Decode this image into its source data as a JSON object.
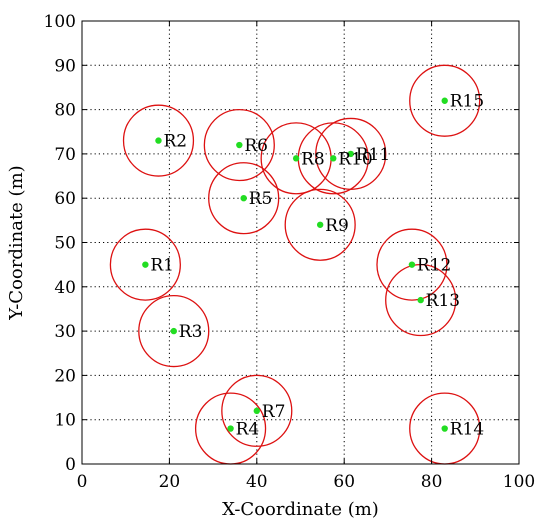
{
  "chart_data": {
    "type": "scatter",
    "title": "",
    "xlabel": "X-Coordinate (m)",
    "ylabel": "Y-Coordinate (m)",
    "xlim": [
      0,
      100
    ],
    "ylim": [
      0,
      100
    ],
    "xticks": [
      0,
      20,
      40,
      60,
      80,
      100
    ],
    "yticks": [
      0,
      10,
      20,
      30,
      40,
      50,
      60,
      70,
      80,
      90,
      100
    ],
    "grid": true,
    "grid_style": "dotted",
    "range_radius": 8,
    "point_color": "#22dd22",
    "circle_color": "#dd1111",
    "points": [
      {
        "label": "R1",
        "x": 14.5,
        "y": 45
      },
      {
        "label": "R2",
        "x": 17.5,
        "y": 73
      },
      {
        "label": "R3",
        "x": 21,
        "y": 30
      },
      {
        "label": "R4",
        "x": 34,
        "y": 8
      },
      {
        "label": "R5",
        "x": 37,
        "y": 60
      },
      {
        "label": "R6",
        "x": 36,
        "y": 72
      },
      {
        "label": "R7",
        "x": 40,
        "y": 12
      },
      {
        "label": "R8",
        "x": 49,
        "y": 69
      },
      {
        "label": "R9",
        "x": 54.5,
        "y": 54
      },
      {
        "label": "R10",
        "x": 57.5,
        "y": 69
      },
      {
        "label": "R11",
        "x": 61.5,
        "y": 70
      },
      {
        "label": "R12",
        "x": 75.5,
        "y": 45
      },
      {
        "label": "R13",
        "x": 77.5,
        "y": 37
      },
      {
        "label": "R14",
        "x": 83,
        "y": 8
      },
      {
        "label": "R15",
        "x": 83,
        "y": 82
      }
    ]
  }
}
